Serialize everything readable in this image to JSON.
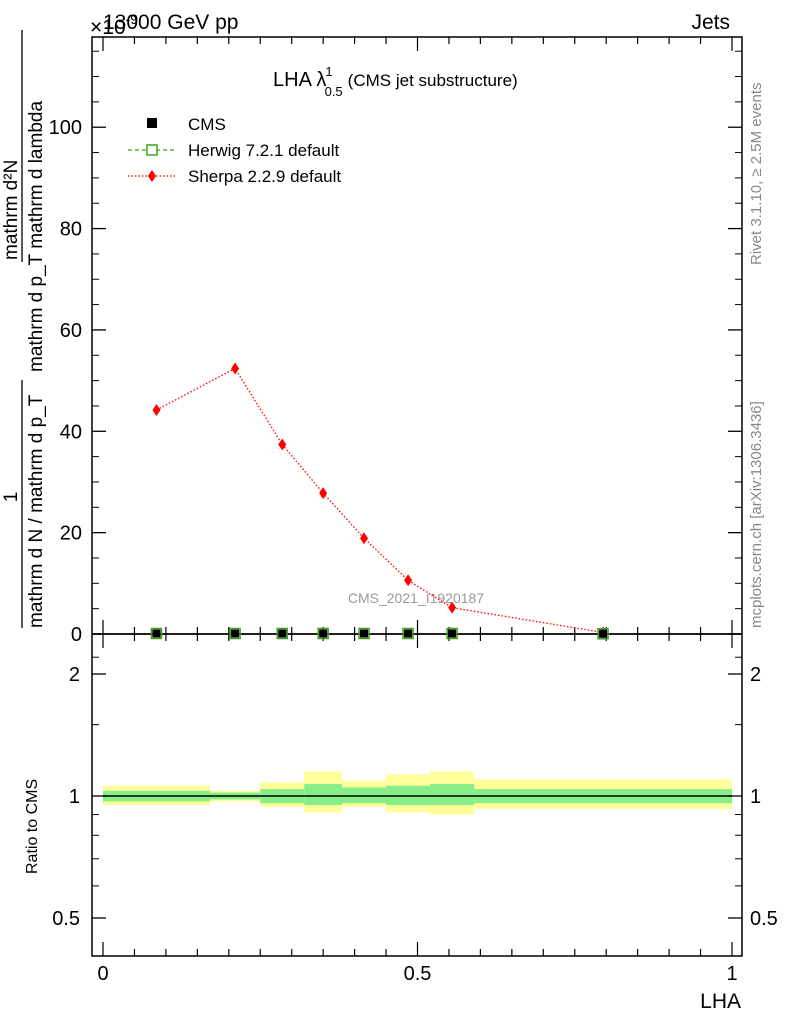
{
  "header": {
    "energy_label": "13000 GeV pp",
    "process_label": "Jets",
    "y_exponent": "×10",
    "y_exponent_power": "-9"
  },
  "title": {
    "main": "LHA λ",
    "sup": "1",
    "sub": "0.5",
    "suffix": "(CMS jet substructure)"
  },
  "side_text": {
    "rivet": "Rivet 3.1.10, ≥ 2.5M events",
    "mcplots": "mcplots.cern.ch [arXiv:1306.3436]"
  },
  "watermark": "CMS_2021_I1920187",
  "legend": [
    {
      "label": "CMS",
      "color": "#000000",
      "marker": "square-filled"
    },
    {
      "label": "Herwig 7.2.1 default",
      "color": "#3f9f1f",
      "marker": "square-open"
    },
    {
      "label": "Sherpa 2.2.9 default",
      "color": "#ff0000",
      "marker": "diamond"
    }
  ],
  "upper_ylabel": {
    "numerator": "mathrm d²N",
    "denominator": "mathrm d p_T mathrm d lambda",
    "prefix_num": "1",
    "prefix_den": "mathrm d N / mathrm d p_T"
  },
  "lower_ylabel": "Ratio to CMS",
  "xlabel": "LHA",
  "chart_data": [
    {
      "type": "line",
      "panel": "main",
      "xlim": [
        0,
        1
      ],
      "ylim": [
        0,
        118
      ],
      "y_ticks": [
        0,
        20,
        40,
        60,
        80,
        100
      ],
      "y_tick_labels": [
        "0",
        "20",
        "40",
        "60",
        "80",
        "100"
      ],
      "x_ticks": [
        0,
        0.5,
        1
      ],
      "x_tick_labels": [
        "0",
        "0.5",
        "1"
      ],
      "bin_edges": [
        0,
        0.17,
        0.25,
        0.32,
        0.38,
        0.45,
        0.52,
        0.59,
        1.0
      ],
      "series": [
        {
          "name": "CMS",
          "x": [
            0.085,
            0.21,
            0.285,
            0.35,
            0.415,
            0.485,
            0.555,
            0.795
          ],
          "y": [
            0.1,
            0.1,
            0.1,
            0.1,
            0.1,
            0.1,
            0.1,
            0.05
          ]
        },
        {
          "name": "Herwig 7.2.1 default",
          "x": [
            0.085,
            0.21,
            0.285,
            0.35,
            0.415,
            0.485,
            0.555,
            0.795
          ],
          "y": [
            0.1,
            0.1,
            0.1,
            0.1,
            0.1,
            0.1,
            0.1,
            0.05
          ]
        },
        {
          "name": "Sherpa 2.2.9 default",
          "x": [
            0.085,
            0.21,
            0.285,
            0.35,
            0.415,
            0.485,
            0.555,
            0.795
          ],
          "y": [
            44.2,
            52.4,
            37.4,
            27.8,
            18.9,
            10.6,
            5.2,
            0.3
          ]
        }
      ]
    },
    {
      "type": "area",
      "panel": "ratio",
      "xlim": [
        0,
        1
      ],
      "ylim": [
        0.4,
        2.4
      ],
      "log_y": true,
      "y_ticks": [
        0.5,
        1,
        2
      ],
      "y_tick_labels": [
        "0.5",
        "1",
        "2"
      ],
      "x_ticks": [
        0,
        0.5,
        1
      ],
      "x_tick_labels": [
        "0",
        "0.5",
        "1"
      ],
      "reference_line": 1,
      "bands": [
        {
          "x0": 0.0,
          "x1": 0.17,
          "inner": [
            0.97,
            1.03
          ],
          "outer": [
            0.95,
            1.06
          ]
        },
        {
          "x0": 0.17,
          "x1": 0.25,
          "inner": [
            0.98,
            1.02
          ],
          "outer": [
            0.97,
            1.03
          ]
        },
        {
          "x0": 0.25,
          "x1": 0.32,
          "inner": [
            0.96,
            1.04
          ],
          "outer": [
            0.94,
            1.08
          ]
        },
        {
          "x0": 0.32,
          "x1": 0.38,
          "inner": [
            0.95,
            1.07
          ],
          "outer": [
            0.91,
            1.15
          ]
        },
        {
          "x0": 0.38,
          "x1": 0.45,
          "inner": [
            0.96,
            1.05
          ],
          "outer": [
            0.94,
            1.09
          ]
        },
        {
          "x0": 0.45,
          "x1": 0.52,
          "inner": [
            0.95,
            1.06
          ],
          "outer": [
            0.91,
            1.13
          ]
        },
        {
          "x0": 0.52,
          "x1": 0.59,
          "inner": [
            0.95,
            1.07
          ],
          "outer": [
            0.9,
            1.15
          ]
        },
        {
          "x0": 0.59,
          "x1": 1.0,
          "inner": [
            0.96,
            1.04
          ],
          "outer": [
            0.93,
            1.1
          ]
        }
      ]
    }
  ],
  "colors": {
    "band_outer": "#ffff99",
    "band_inner": "#88ee88"
  }
}
